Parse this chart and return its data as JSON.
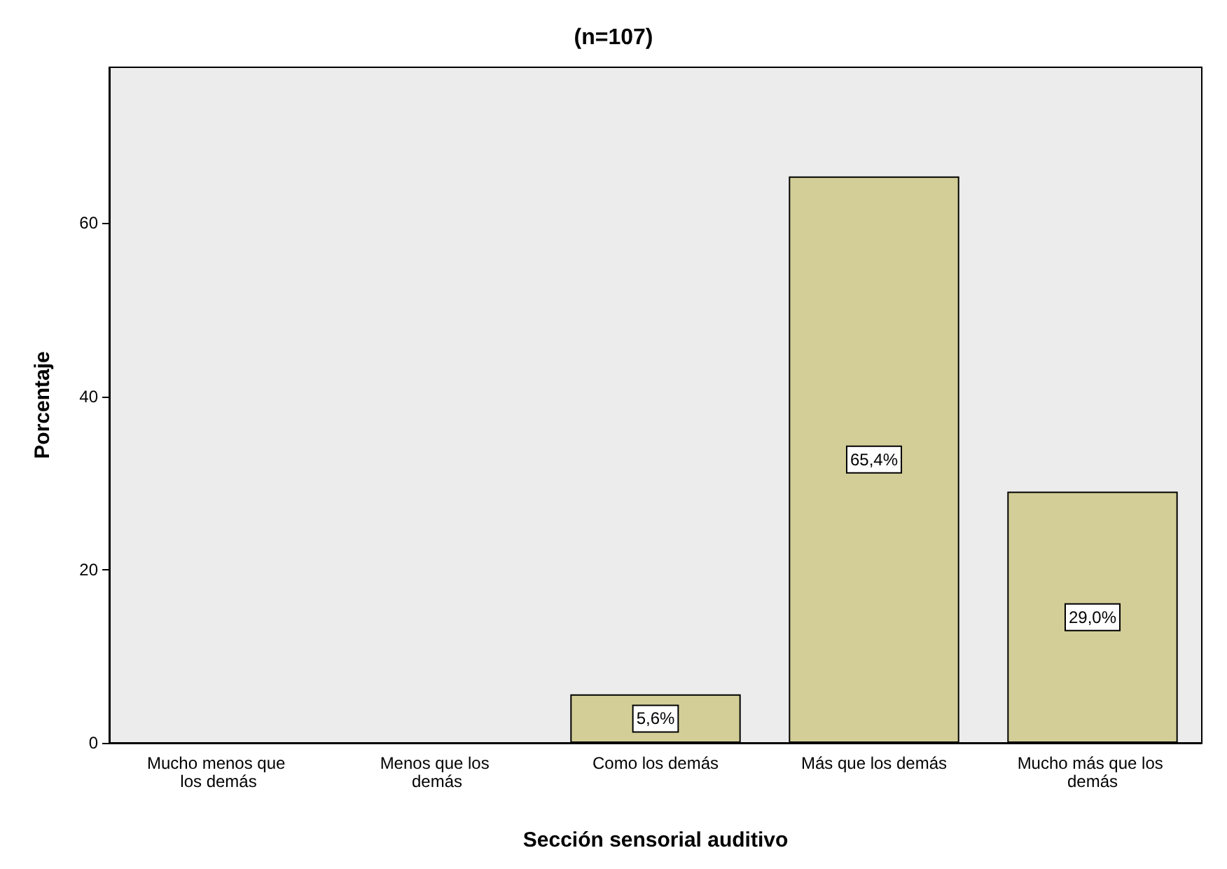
{
  "chart_data": {
    "type": "bar",
    "title": "(n=107)",
    "xlabel": "Sección sensorial auditivo",
    "ylabel": "Porcentaje",
    "categories": [
      "Mucho menos que los demás",
      "Menos que los demás",
      "Como los demás",
      "Más que los demás",
      "Mucho más que los demás"
    ],
    "values": [
      0,
      0,
      5.6,
      65.4,
      29.0
    ],
    "value_labels": [
      null,
      null,
      "5,6%",
      "65,4%",
      "29,0%"
    ],
    "color": "#d3ce97",
    "ylim": [
      0,
      78
    ],
    "yticks": [
      0,
      20,
      40,
      60
    ],
    "grid": false
  }
}
